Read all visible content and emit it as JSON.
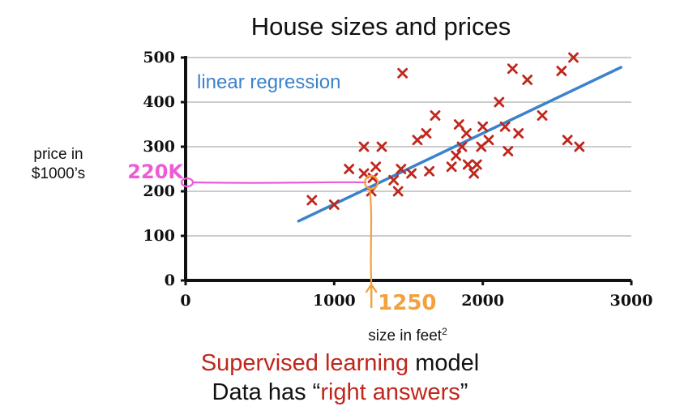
{
  "chart_data": {
    "type": "scatter",
    "title": "House sizes and prices",
    "xlabel": "size in feet",
    "xlabel_superscript": "2",
    "ylabel_lines": [
      "price in",
      "$1000’s"
    ],
    "xlim": [
      0,
      3000
    ],
    "ylim": [
      0,
      500
    ],
    "xticks": [
      0,
      1000,
      2000,
      3000
    ],
    "yticks": [
      0,
      100,
      200,
      300,
      400,
      500
    ],
    "grid": "horizontal",
    "points": [
      {
        "x": 850,
        "y": 180
      },
      {
        "x": 1000,
        "y": 170
      },
      {
        "x": 1100,
        "y": 250
      },
      {
        "x": 1200,
        "y": 300
      },
      {
        "x": 1200,
        "y": 240
      },
      {
        "x": 1250,
        "y": 200
      },
      {
        "x": 1260,
        "y": 230
      },
      {
        "x": 1280,
        "y": 255
      },
      {
        "x": 1320,
        "y": 300
      },
      {
        "x": 1400,
        "y": 225
      },
      {
        "x": 1430,
        "y": 200
      },
      {
        "x": 1450,
        "y": 250
      },
      {
        "x": 1460,
        "y": 465
      },
      {
        "x": 1520,
        "y": 240
      },
      {
        "x": 1560,
        "y": 315
      },
      {
        "x": 1620,
        "y": 330
      },
      {
        "x": 1640,
        "y": 245
      },
      {
        "x": 1680,
        "y": 370
      },
      {
        "x": 1790,
        "y": 255
      },
      {
        "x": 1820,
        "y": 280
      },
      {
        "x": 1840,
        "y": 350
      },
      {
        "x": 1860,
        "y": 300
      },
      {
        "x": 1890,
        "y": 330
      },
      {
        "x": 1900,
        "y": 260
      },
      {
        "x": 1940,
        "y": 240
      },
      {
        "x": 1960,
        "y": 260
      },
      {
        "x": 1990,
        "y": 300
      },
      {
        "x": 2000,
        "y": 345
      },
      {
        "x": 2040,
        "y": 315
      },
      {
        "x": 2110,
        "y": 400
      },
      {
        "x": 2150,
        "y": 345
      },
      {
        "x": 2170,
        "y": 290
      },
      {
        "x": 2200,
        "y": 475
      },
      {
        "x": 2240,
        "y": 330
      },
      {
        "x": 2300,
        "y": 450
      },
      {
        "x": 2400,
        "y": 370
      },
      {
        "x": 2530,
        "y": 470
      },
      {
        "x": 2570,
        "y": 315
      },
      {
        "x": 2610,
        "y": 500
      },
      {
        "x": 2650,
        "y": 300
      }
    ],
    "regression_line": {
      "label": "linear regression",
      "x": [
        760,
        2930
      ],
      "y": [
        133,
        478
      ]
    },
    "annotations": {
      "query_x": 1250,
      "query_y": 220,
      "x_label": "1250",
      "y_label": "220K"
    }
  },
  "colors": {
    "points": "#c0261b",
    "regression": "#3b82cc",
    "annotation_x": "#f2a23c",
    "annotation_y": "#ec5bd8",
    "axis": "#111111",
    "grid": "#9a9a9a"
  },
  "caption": {
    "line1_highlight": "Supervised learning",
    "line1_rest": " model",
    "line2_start": "Data has “",
    "line2_highlight": "right answers",
    "line2_end": "”"
  }
}
